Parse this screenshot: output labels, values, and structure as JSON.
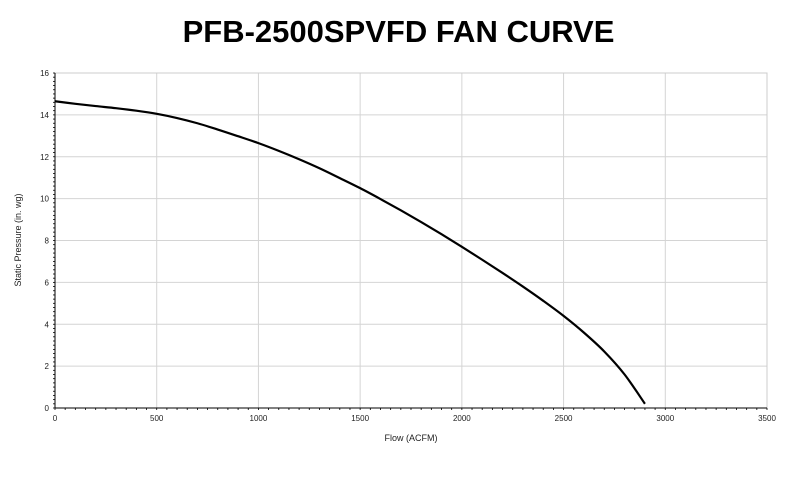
{
  "chart_data": {
    "type": "line",
    "title": "PFB-2500SPVFD FAN CURVE",
    "xlabel": "Flow (ACFM)",
    "ylabel": "Static Pressure (in. wg)",
    "xlim": [
      0,
      3500
    ],
    "ylim": [
      0,
      16
    ],
    "x_ticks": [
      0,
      500,
      1000,
      1500,
      2000,
      2500,
      3000,
      3500
    ],
    "y_ticks": [
      0,
      2,
      4,
      6,
      8,
      10,
      12,
      14,
      16
    ],
    "grid": true,
    "legend": "none",
    "series": [
      {
        "color": "#000000",
        "x": [
          0,
          100,
          200,
          300,
          400,
          500,
          600,
          700,
          800,
          900,
          1000,
          1100,
          1200,
          1300,
          1400,
          1500,
          1600,
          1700,
          1800,
          1900,
          2000,
          2100,
          2200,
          2300,
          2400,
          2500,
          2600,
          2700,
          2800,
          2900
        ],
        "y": [
          14.65,
          14.53,
          14.42,
          14.32,
          14.2,
          14.05,
          13.85,
          13.6,
          13.3,
          12.98,
          12.65,
          12.28,
          11.88,
          11.45,
          10.98,
          10.5,
          9.98,
          9.44,
          8.88,
          8.3,
          7.7,
          7.08,
          6.45,
          5.8,
          5.12,
          4.4,
          3.6,
          2.7,
          1.6,
          0.2
        ]
      }
    ]
  }
}
